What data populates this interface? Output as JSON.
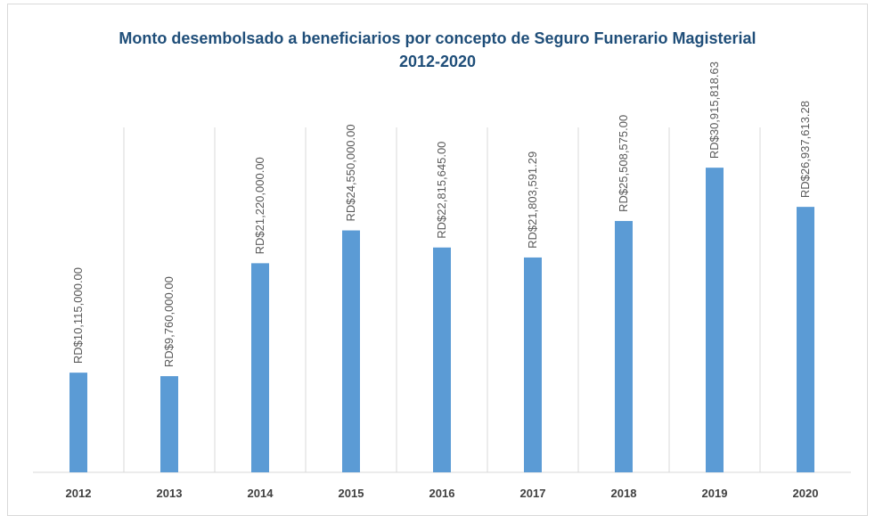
{
  "chart_data": {
    "type": "bar",
    "title": "Monto desembolsado a beneficiarios por concepto de Seguro Funerario Magisterial 2012-2020",
    "categories": [
      "2012",
      "2013",
      "2014",
      "2015",
      "2016",
      "2017",
      "2018",
      "2019",
      "2020"
    ],
    "values": [
      10115000,
      9760000,
      21220000,
      24550000,
      22815645,
      21803591.29,
      25508575,
      30915818.63,
      26937613.28
    ],
    "value_labels": [
      "RD$10,115,000.00",
      "RD$9,760,000.00",
      "RD$21,220,000.00",
      "RD$24,550,000.00",
      "RD$22,815,645.00",
      "RD$21,803,591.29",
      "RD$25,508,575.00",
      "RD$30,915,818.63",
      "RD$26,937,613.28"
    ],
    "color": "#5b9bd5",
    "ylim": [
      0,
      35000000
    ]
  }
}
